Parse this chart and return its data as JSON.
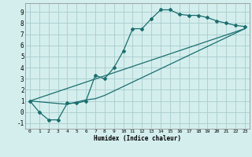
{
  "title": "",
  "xlabel": "Humidex (Indice chaleur)",
  "bg_color": "#d4eeed",
  "grid_color": "#aacccc",
  "line_color": "#1a6e6e",
  "xlim": [
    -0.5,
    23.5
  ],
  "ylim": [
    -1.5,
    9.8
  ],
  "xticks": [
    0,
    1,
    2,
    3,
    4,
    5,
    6,
    7,
    8,
    9,
    10,
    11,
    12,
    13,
    14,
    15,
    16,
    17,
    18,
    19,
    20,
    21,
    22,
    23
  ],
  "yticks": [
    -1,
    0,
    1,
    2,
    3,
    4,
    5,
    6,
    7,
    8,
    9
  ],
  "line1_x": [
    0,
    1,
    2,
    3,
    4,
    5,
    6,
    7,
    8,
    9,
    10,
    11,
    12,
    13,
    14,
    15,
    16,
    17,
    18,
    19,
    20,
    21,
    22,
    23
  ],
  "line1_y": [
    1.0,
    0.0,
    -0.7,
    -0.7,
    0.8,
    0.8,
    1.0,
    3.3,
    3.0,
    4.0,
    5.5,
    7.5,
    7.5,
    8.4,
    9.2,
    9.2,
    8.8,
    8.7,
    8.7,
    8.5,
    8.2,
    8.0,
    7.8,
    7.7
  ],
  "line2_x": [
    0,
    4,
    5,
    6,
    7,
    8,
    23
  ],
  "line2_y": [
    1.0,
    0.7,
    0.9,
    1.1,
    1.2,
    1.5,
    7.5
  ],
  "line3_x": [
    0,
    23
  ],
  "line3_y": [
    1.0,
    7.5
  ]
}
